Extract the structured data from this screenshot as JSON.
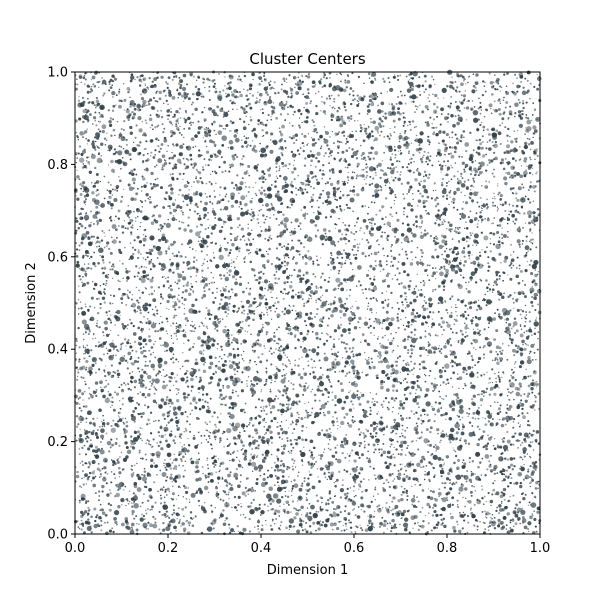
{
  "chart_data": {
    "type": "scatter",
    "title": "Cluster Centers",
    "xlabel": "Dimension 1",
    "ylabel": "Dimension 2",
    "xlim": [
      0,
      1
    ],
    "ylim": [
      0,
      1
    ],
    "xticks": [
      "0.0",
      "0.2",
      "0.4",
      "0.6",
      "0.8",
      "1.0"
    ],
    "yticks": [
      "0.0",
      "0.2",
      "0.4",
      "0.6",
      "0.8",
      "1.0"
    ],
    "grid": false,
    "legend": "none",
    "point_color": "#2f3e46",
    "point_distribution": "uniform",
    "approx_point_count": 9000,
    "points_sample": [
      [
        0.05,
        0.93
      ],
      [
        0.12,
        0.88
      ],
      [
        0.21,
        0.77
      ],
      [
        0.33,
        0.95
      ],
      [
        0.41,
        0.82
      ],
      [
        0.52,
        0.91
      ],
      [
        0.63,
        0.86
      ],
      [
        0.74,
        0.97
      ],
      [
        0.85,
        0.79
      ],
      [
        0.96,
        0.9
      ],
      [
        0.03,
        0.64
      ],
      [
        0.17,
        0.58
      ],
      [
        0.28,
        0.69
      ],
      [
        0.39,
        0.61
      ],
      [
        0.47,
        0.72
      ],
      [
        0.58,
        0.55
      ],
      [
        0.69,
        0.66
      ],
      [
        0.78,
        0.6
      ],
      [
        0.88,
        0.71
      ],
      [
        0.97,
        0.57
      ],
      [
        0.07,
        0.43
      ],
      [
        0.15,
        0.35
      ],
      [
        0.26,
        0.48
      ],
      [
        0.36,
        0.31
      ],
      [
        0.45,
        0.4
      ],
      [
        0.56,
        0.44
      ],
      [
        0.66,
        0.33
      ],
      [
        0.76,
        0.47
      ],
      [
        0.87,
        0.38
      ],
      [
        0.94,
        0.42
      ],
      [
        0.04,
        0.18
      ],
      [
        0.13,
        0.22
      ],
      [
        0.24,
        0.09
      ],
      [
        0.34,
        0.16
      ],
      [
        0.43,
        0.25
      ],
      [
        0.55,
        0.12
      ],
      [
        0.64,
        0.21
      ],
      [
        0.73,
        0.06
      ],
      [
        0.83,
        0.19
      ],
      [
        0.95,
        0.11
      ]
    ]
  }
}
